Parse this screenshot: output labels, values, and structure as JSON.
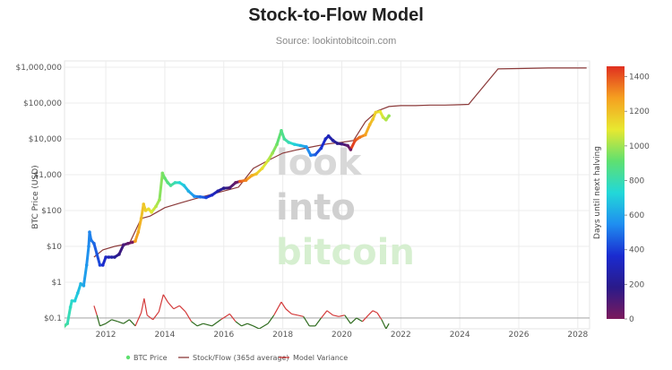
{
  "chart_data": {
    "type": "scatter",
    "title": "Stock-to-Flow Model",
    "subtitle": "Source: lookintobitcoin.com",
    "ylabel": "BTC Price (USD)",
    "y_scale": "log",
    "ylim": [
      0.05,
      1500000
    ],
    "xlim": [
      2010.6,
      2028.4
    ],
    "y_ticks": [
      {
        "v": 0.1,
        "label": "$0.1"
      },
      {
        "v": 1,
        "label": "$1"
      },
      {
        "v": 10,
        "label": "$10"
      },
      {
        "v": 100,
        "label": "$100"
      },
      {
        "v": 1000,
        "label": "$1,000"
      },
      {
        "v": 10000,
        "label": "$10,000"
      },
      {
        "v": 100000,
        "label": "$100,000"
      },
      {
        "v": 1000000,
        "label": "$1,000,000"
      }
    ],
    "x_ticks": [
      {
        "v": 2012,
        "label": "2012"
      },
      {
        "v": 2014,
        "label": "2014"
      },
      {
        "v": 2016,
        "label": "2016"
      },
      {
        "v": 2018,
        "label": "2018"
      },
      {
        "v": 2020,
        "label": "2020"
      },
      {
        "v": 2022,
        "label": "2022"
      },
      {
        "v": 2024,
        "label": "2024"
      },
      {
        "v": 2026,
        "label": "2026"
      },
      {
        "v": 2028,
        "label": "2028"
      }
    ],
    "grid": true,
    "watermark": [
      "look",
      "into",
      "bitcoin"
    ],
    "colorbar": {
      "label": "Days until next halving",
      "min": 0,
      "max": 1460,
      "ticks": [
        0,
        200,
        400,
        600,
        800,
        1000,
        1200,
        1400
      ],
      "colors": [
        "#7b1a5c",
        "#2a1a8a",
        "#1a2bd0",
        "#1f8ef0",
        "#22d8d8",
        "#5fe070",
        "#e8e830",
        "#f5a020",
        "#e03020"
      ]
    },
    "halvings": [
      2012.91,
      2016.52,
      2020.36,
      2024.3
    ],
    "series": [
      {
        "name": "BTC Price",
        "kind": "scatter",
        "points": [
          [
            2010.6,
            0.06
          ],
          [
            2010.7,
            0.07
          ],
          [
            2010.8,
            0.2
          ],
          [
            2010.85,
            0.3
          ],
          [
            2010.95,
            0.3
          ],
          [
            2011.05,
            0.5
          ],
          [
            2011.15,
            0.9
          ],
          [
            2011.25,
            0.8
          ],
          [
            2011.35,
            3
          ],
          [
            2011.42,
            10
          ],
          [
            2011.45,
            25
          ],
          [
            2011.5,
            15
          ],
          [
            2011.6,
            12
          ],
          [
            2011.7,
            6
          ],
          [
            2011.8,
            3
          ],
          [
            2011.9,
            3
          ],
          [
            2012.0,
            5
          ],
          [
            2012.1,
            5
          ],
          [
            2012.2,
            5
          ],
          [
            2012.3,
            5
          ],
          [
            2012.45,
            6
          ],
          [
            2012.6,
            11
          ],
          [
            2012.75,
            12
          ],
          [
            2012.9,
            13
          ],
          [
            2013.0,
            14
          ],
          [
            2013.1,
            25
          ],
          [
            2013.2,
            60
          ],
          [
            2013.28,
            150
          ],
          [
            2013.35,
            100
          ],
          [
            2013.45,
            110
          ],
          [
            2013.55,
            90
          ],
          [
            2013.7,
            130
          ],
          [
            2013.82,
            200
          ],
          [
            2013.92,
            1100
          ],
          [
            2014.0,
            800
          ],
          [
            2014.1,
            600
          ],
          [
            2014.2,
            500
          ],
          [
            2014.35,
            600
          ],
          [
            2014.5,
            600
          ],
          [
            2014.65,
            500
          ],
          [
            2014.8,
            350
          ],
          [
            2015.0,
            250
          ],
          [
            2015.2,
            240
          ],
          [
            2015.4,
            230
          ],
          [
            2015.6,
            270
          ],
          [
            2015.8,
            350
          ],
          [
            2016.0,
            420
          ],
          [
            2016.2,
            430
          ],
          [
            2016.4,
            600
          ],
          [
            2016.55,
            650
          ],
          [
            2016.75,
            700
          ],
          [
            2016.95,
            950
          ],
          [
            2017.1,
            1050
          ],
          [
            2017.3,
            1500
          ],
          [
            2017.5,
            2500
          ],
          [
            2017.65,
            4000
          ],
          [
            2017.8,
            7000
          ],
          [
            2017.95,
            17000
          ],
          [
            2018.05,
            10000
          ],
          [
            2018.2,
            8000
          ],
          [
            2018.4,
            7000
          ],
          [
            2018.6,
            6500
          ],
          [
            2018.8,
            6000
          ],
          [
            2018.95,
            3500
          ],
          [
            2019.1,
            3600
          ],
          [
            2019.3,
            5500
          ],
          [
            2019.45,
            10000
          ],
          [
            2019.55,
            12000
          ],
          [
            2019.7,
            9000
          ],
          [
            2019.85,
            7500
          ],
          [
            2020.0,
            7200
          ],
          [
            2020.2,
            6500
          ],
          [
            2020.3,
            5000
          ],
          [
            2020.45,
            9000
          ],
          [
            2020.6,
            11000
          ],
          [
            2020.8,
            13000
          ],
          [
            2020.95,
            25000
          ],
          [
            2021.05,
            35000
          ],
          [
            2021.15,
            55000
          ],
          [
            2021.3,
            58000
          ],
          [
            2021.4,
            40000
          ],
          [
            2021.5,
            34000
          ],
          [
            2021.6,
            44000
          ]
        ]
      },
      {
        "name": "Stock/Flow (365d average)",
        "kind": "line",
        "color": "#8b3a3a",
        "points": [
          [
            2011.6,
            5
          ],
          [
            2011.9,
            8
          ],
          [
            2012.3,
            10
          ],
          [
            2012.8,
            12
          ],
          [
            2013.2,
            60
          ],
          [
            2013.5,
            70
          ],
          [
            2014.0,
            120
          ],
          [
            2014.5,
            160
          ],
          [
            2015.0,
            210
          ],
          [
            2015.5,
            270
          ],
          [
            2016.0,
            350
          ],
          [
            2016.5,
            450
          ],
          [
            2017.0,
            1500
          ],
          [
            2017.5,
            2500
          ],
          [
            2018.0,
            4000
          ],
          [
            2018.5,
            5000
          ],
          [
            2019.0,
            6000
          ],
          [
            2019.5,
            7200
          ],
          [
            2020.0,
            8000
          ],
          [
            2020.4,
            9000
          ],
          [
            2020.8,
            30000
          ],
          [
            2021.2,
            60000
          ],
          [
            2021.6,
            80000
          ],
          [
            2022.0,
            85000
          ],
          [
            2022.5,
            85000
          ],
          [
            2023.0,
            88000
          ],
          [
            2023.5,
            88000
          ],
          [
            2024.0,
            90000
          ],
          [
            2024.3,
            92000
          ],
          [
            2025.3,
            900000
          ],
          [
            2026.0,
            920000
          ],
          [
            2027.0,
            950000
          ],
          [
            2028.3,
            950000
          ]
        ]
      },
      {
        "name": "Model Variance",
        "kind": "line",
        "positive_color": "#d33a3a",
        "negative_color": "#2e6b1e",
        "baseline": 0.1,
        "points": [
          [
            2011.6,
            0.22
          ],
          [
            2011.7,
            0.12
          ],
          [
            2011.8,
            0.06
          ],
          [
            2012.0,
            0.07
          ],
          [
            2012.2,
            0.09
          ],
          [
            2012.4,
            0.08
          ],
          [
            2012.6,
            0.07
          ],
          [
            2012.8,
            0.09
          ],
          [
            2013.0,
            0.06
          ],
          [
            2013.2,
            0.14
          ],
          [
            2013.3,
            0.35
          ],
          [
            2013.4,
            0.12
          ],
          [
            2013.6,
            0.09
          ],
          [
            2013.8,
            0.15
          ],
          [
            2013.95,
            0.45
          ],
          [
            2014.1,
            0.28
          ],
          [
            2014.3,
            0.18
          ],
          [
            2014.5,
            0.22
          ],
          [
            2014.7,
            0.15
          ],
          [
            2014.9,
            0.08
          ],
          [
            2015.1,
            0.06
          ],
          [
            2015.3,
            0.07
          ],
          [
            2015.6,
            0.06
          ],
          [
            2015.9,
            0.09
          ],
          [
            2016.2,
            0.13
          ],
          [
            2016.4,
            0.08
          ],
          [
            2016.6,
            0.06
          ],
          [
            2016.8,
            0.07
          ],
          [
            2017.0,
            0.06
          ],
          [
            2017.2,
            0.05
          ],
          [
            2017.5,
            0.07
          ],
          [
            2017.7,
            0.12
          ],
          [
            2017.95,
            0.28
          ],
          [
            2018.1,
            0.18
          ],
          [
            2018.3,
            0.13
          ],
          [
            2018.5,
            0.12
          ],
          [
            2018.7,
            0.11
          ],
          [
            2018.9,
            0.06
          ],
          [
            2019.1,
            0.06
          ],
          [
            2019.3,
            0.1
          ],
          [
            2019.5,
            0.16
          ],
          [
            2019.7,
            0.12
          ],
          [
            2019.9,
            0.11
          ],
          [
            2020.1,
            0.12
          ],
          [
            2020.3,
            0.07
          ],
          [
            2020.5,
            0.1
          ],
          [
            2020.7,
            0.08
          ],
          [
            2020.9,
            0.12
          ],
          [
            2021.05,
            0.16
          ],
          [
            2021.2,
            0.14
          ],
          [
            2021.35,
            0.09
          ],
          [
            2021.5,
            0.05
          ],
          [
            2021.6,
            0.07
          ]
        ]
      }
    ],
    "legend": [
      {
        "label": "BTC Price",
        "color": "#5fe070",
        "kind": "dot"
      },
      {
        "label": "Stock/Flow (365d average)",
        "color": "#8b3a3a",
        "kind": "line"
      },
      {
        "label": "Model Variance",
        "color": "#d33a3a",
        "kind": "line"
      }
    ],
    "legend_position": "bottom"
  }
}
